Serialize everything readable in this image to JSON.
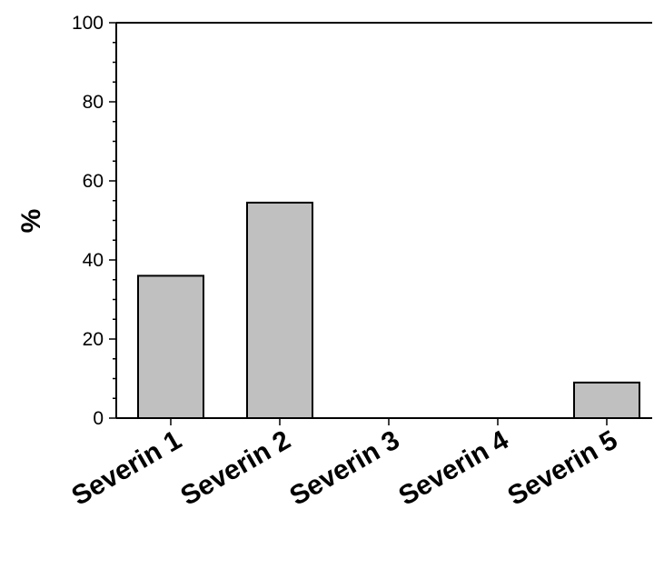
{
  "chart_data": {
    "type": "bar",
    "categories": [
      "Severin 1",
      "Severin 2",
      "Severin 3",
      "Severin 4",
      "Severin 5"
    ],
    "values": [
      36,
      54.5,
      0,
      0,
      9
    ],
    "title": "",
    "xlabel": "",
    "ylabel": "%",
    "ylim": [
      0,
      100
    ],
    "yticks": [
      0,
      20,
      40,
      60,
      80,
      100
    ],
    "grid": false,
    "colors": {
      "bar_fill": "#c0c0c0",
      "bar_stroke": "#000000"
    }
  }
}
